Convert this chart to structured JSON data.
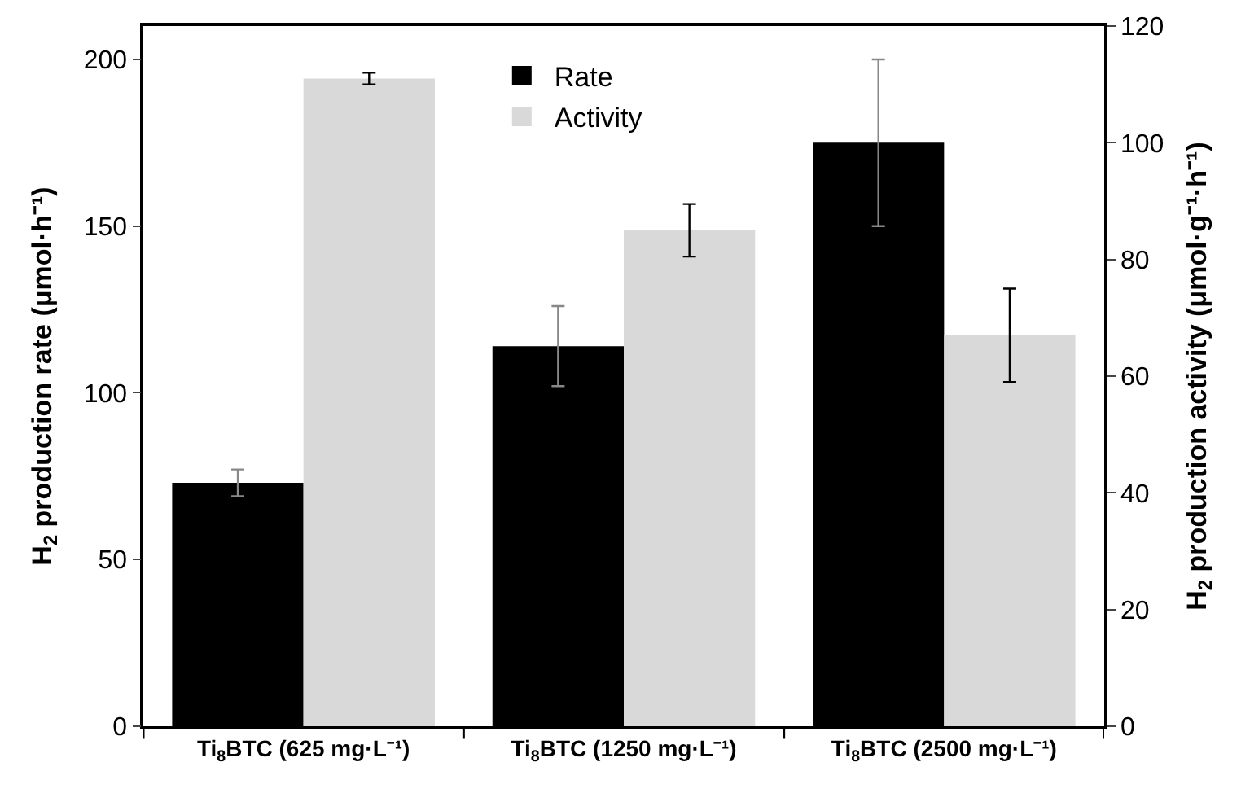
{
  "chart_data": {
    "type": "bar",
    "ylabel": "H$_{2}$ production rate (μmol·h⁻¹)",
    "y2label": "H$_{2}$ production activity (μmol·g⁻¹·h⁻¹)",
    "categories": [
      "Ti$_{8}$BTC (625 mg·L⁻¹)",
      "Ti$_{8}$BTC (1250 mg·L⁻¹)",
      "Ti$_{8}$BTC (2500 mg·L⁻¹)"
    ],
    "series": [
      {
        "name": "Rate",
        "color": "#000000",
        "values": [
          73,
          114,
          175
        ],
        "errors": [
          4,
          12,
          25
        ]
      },
      {
        "name": "Activity",
        "color": "#d9d9d9",
        "axis": "y2",
        "values": [
          111,
          85,
          67
        ],
        "errors": [
          1,
          4.5,
          8
        ]
      }
    ],
    "ylim": [
      0,
      210
    ],
    "yticks": [
      0,
      50,
      100,
      150,
      200
    ],
    "y2lim": [
      0,
      120
    ],
    "y2ticks": [
      0,
      20,
      40,
      60,
      80,
      100,
      120
    ],
    "legend": "top"
  }
}
